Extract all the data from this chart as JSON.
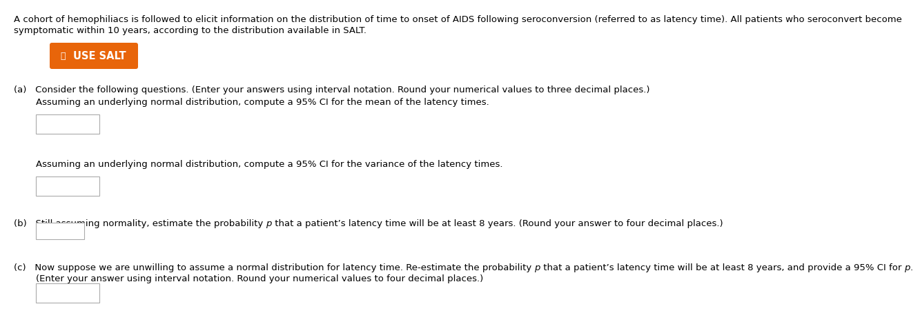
{
  "bg_color": "#ffffff",
  "button_color": "#E8650A",
  "button_text_color": "#ffffff",
  "font_size": 9.5,
  "intro_line1": "A cohort of hemophiliacs is followed to elicit information on the distribution of time to onset of AIDS following seroconversion (referred to as latency time). All patients who seroconvert become",
  "intro_line2": "symptomatic within 10 years, according to the distribution available in SALT.",
  "button_label": "USE SALT",
  "part_a_header": "(a)   Consider the following questions. (Enter your answers using interval notation. Round your numerical values to three decimal places.)",
  "part_a_q1": "Assuming an underlying normal distribution, compute a 95% CI for the mean of the latency times.",
  "part_a_q2": "Assuming an underlying normal distribution, compute a 95% CI for the variance of the latency times.",
  "part_b_pre": "(b)   Still assuming normality, estimate the probability ",
  "part_b_post": " that a patient’s latency time will be at least 8 years. (Round your answer to four decimal places.)",
  "part_c_pre": "(c)   Now suppose we are unwilling to assume a normal distribution for latency time. Re-estimate the probability ",
  "part_c_mid": " that a patient’s latency time will be at least 8 years, and provide a 95% CI for ",
  "part_c_end": ".",
  "part_c_line2": "        (Enter your answer using interval notation. Round your numerical values to four decimal places.)"
}
